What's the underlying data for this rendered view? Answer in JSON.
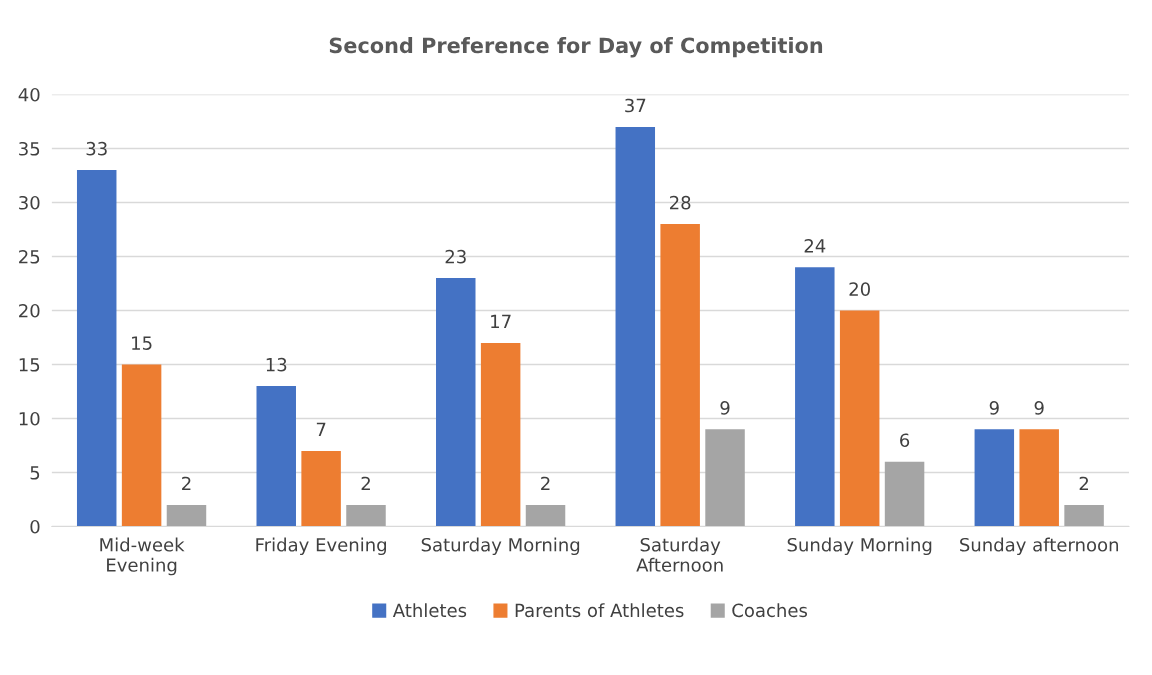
{
  "chart_data": {
    "type": "bar",
    "title": "Second Preference for Day of Competition",
    "categories": [
      "Mid-week\nEvening",
      "Friday Evening",
      "Saturday Morning",
      "Saturday\nAfternoon",
      "Sunday Morning",
      "Sunday afternoon"
    ],
    "series": [
      {
        "name": "Athletes",
        "color": "#4472c4",
        "values": [
          33,
          13,
          23,
          37,
          24,
          9
        ]
      },
      {
        "name": "Parents of Athletes",
        "color": "#ed7d31",
        "values": [
          15,
          7,
          17,
          28,
          20,
          9
        ]
      },
      {
        "name": "Coaches",
        "color": "#a5a5a5",
        "values": [
          2,
          2,
          2,
          9,
          6,
          2
        ]
      }
    ],
    "ylim": [
      0,
      40
    ],
    "yticks": [
      0,
      5,
      10,
      15,
      20,
      25,
      30,
      35,
      40
    ],
    "grid": "y",
    "legend": "bottom",
    "data_labels": true
  }
}
